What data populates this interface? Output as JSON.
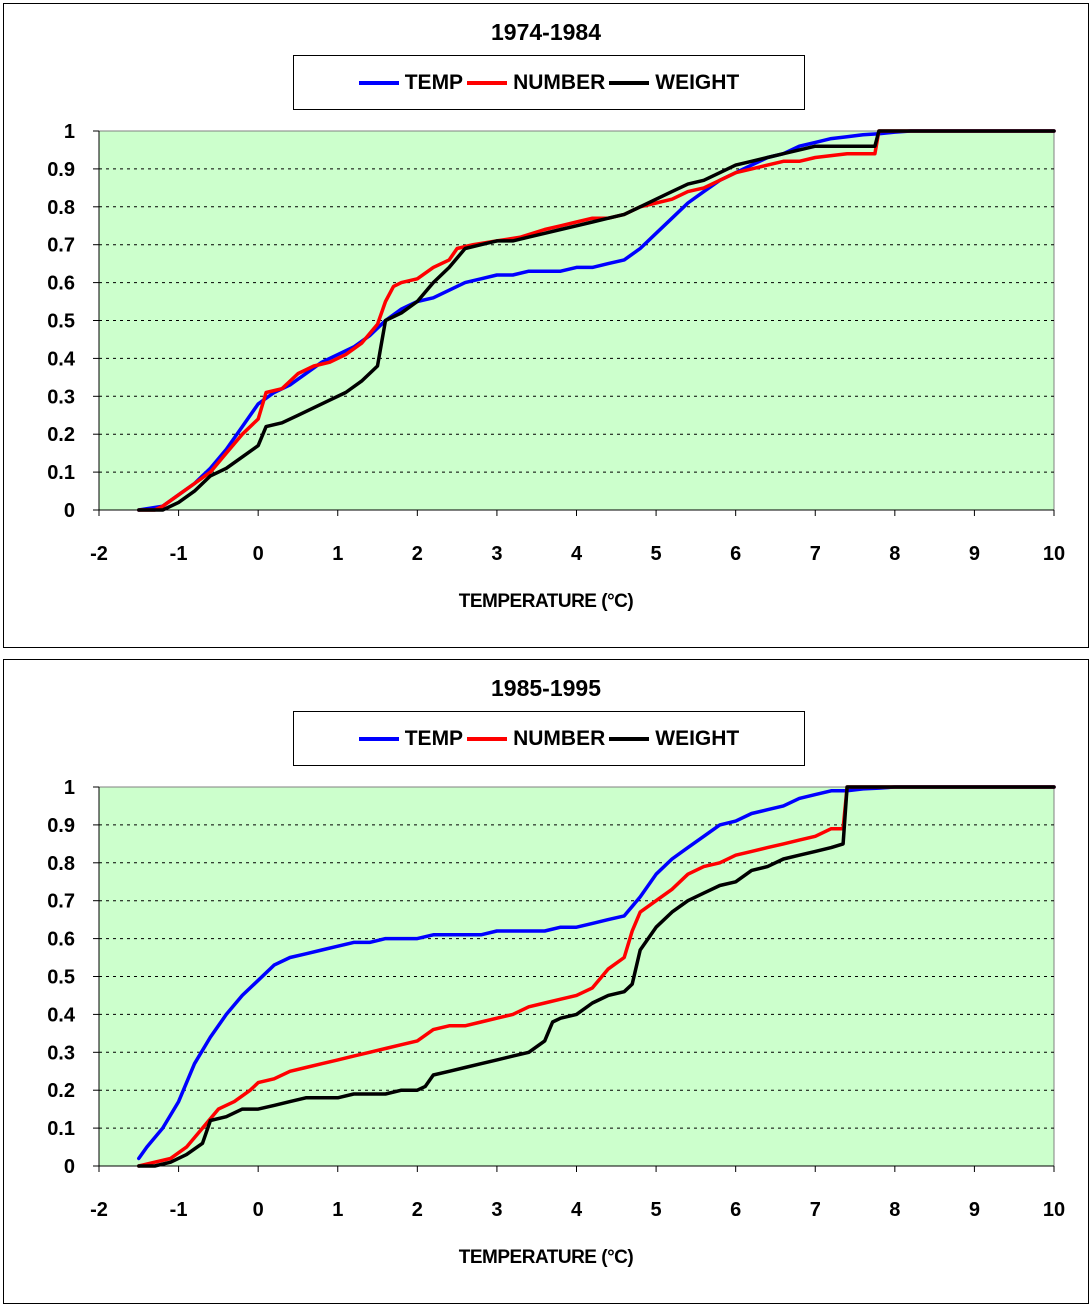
{
  "colors": {
    "plot_bg": "#ccffcc",
    "grid": "#000000",
    "TEMP": "#0000ff",
    "NUMBER": "#ff0000",
    "WEIGHT": "#000000"
  },
  "chart_data": [
    {
      "type": "line",
      "title": "1974-1984",
      "xlabel": "TEMPERATURE (°C)",
      "ylabel": "",
      "xlim": [
        -2,
        10
      ],
      "ylim": [
        0,
        1
      ],
      "xticks": [
        "-2",
        "-1",
        "0",
        "1",
        "2",
        "3",
        "4",
        "5",
        "6",
        "7",
        "8",
        "9",
        "10"
      ],
      "yticks": [
        "0",
        "0.1",
        "0.2",
        "0.3",
        "0.4",
        "0.5",
        "0.6",
        "0.7",
        "0.8",
        "0.9",
        "1"
      ],
      "grid": "horizontal dashed",
      "legend": "top-center",
      "series": [
        {
          "name": "TEMP",
          "x": [
            -1.5,
            -1.2,
            -1.0,
            -0.8,
            -0.6,
            -0.4,
            -0.2,
            0.0,
            0.2,
            0.4,
            0.6,
            0.8,
            1.0,
            1.2,
            1.4,
            1.6,
            1.8,
            2.0,
            2.2,
            2.4,
            2.6,
            2.8,
            3.0,
            3.2,
            3.4,
            3.6,
            3.8,
            4.0,
            4.2,
            4.4,
            4.6,
            4.8,
            5.0,
            5.2,
            5.4,
            5.6,
            5.8,
            6.0,
            6.2,
            6.4,
            6.6,
            6.8,
            7.0,
            7.2,
            7.4,
            7.6,
            7.8,
            8.0,
            8.2,
            10.0
          ],
          "y": [
            0,
            0.01,
            0.04,
            0.07,
            0.11,
            0.16,
            0.22,
            0.28,
            0.31,
            0.33,
            0.36,
            0.39,
            0.41,
            0.43,
            0.46,
            0.5,
            0.53,
            0.55,
            0.56,
            0.58,
            0.6,
            0.61,
            0.62,
            0.62,
            0.63,
            0.63,
            0.63,
            0.64,
            0.64,
            0.65,
            0.66,
            0.69,
            0.73,
            0.77,
            0.81,
            0.84,
            0.87,
            0.89,
            0.91,
            0.93,
            0.94,
            0.96,
            0.97,
            0.98,
            0.985,
            0.99,
            0.993,
            0.997,
            1,
            1
          ]
        },
        {
          "name": "NUMBER",
          "x": [
            -1.5,
            -1.3,
            -1.2,
            -1.0,
            -0.8,
            -0.6,
            -0.4,
            -0.2,
            0.0,
            0.1,
            0.3,
            0.5,
            0.7,
            0.9,
            1.1,
            1.3,
            1.5,
            1.6,
            1.7,
            1.8,
            2.0,
            2.2,
            2.4,
            2.5,
            2.7,
            3.0,
            3.3,
            3.6,
            3.8,
            4.0,
            4.2,
            4.4,
            4.6,
            4.8,
            5.0,
            5.2,
            5.4,
            5.6,
            5.8,
            6.0,
            6.2,
            6.4,
            6.6,
            6.8,
            7.0,
            7.2,
            7.4,
            7.6,
            7.75,
            7.8,
            8.2,
            10.0
          ],
          "y": [
            0,
            0,
            0.01,
            0.04,
            0.07,
            0.1,
            0.15,
            0.2,
            0.24,
            0.31,
            0.32,
            0.36,
            0.38,
            0.39,
            0.41,
            0.44,
            0.49,
            0.55,
            0.59,
            0.6,
            0.61,
            0.64,
            0.66,
            0.69,
            0.7,
            0.71,
            0.72,
            0.74,
            0.75,
            0.76,
            0.77,
            0.77,
            0.78,
            0.8,
            0.81,
            0.82,
            0.84,
            0.85,
            0.87,
            0.89,
            0.9,
            0.91,
            0.92,
            0.92,
            0.93,
            0.935,
            0.94,
            0.94,
            0.94,
            1,
            1,
            1
          ]
        },
        {
          "name": "WEIGHT",
          "x": [
            -1.5,
            -1.2,
            -1.0,
            -0.8,
            -0.6,
            -0.4,
            -0.2,
            0.0,
            0.1,
            0.3,
            0.5,
            0.7,
            0.9,
            1.1,
            1.3,
            1.5,
            1.55,
            1.6,
            1.8,
            2.0,
            2.2,
            2.4,
            2.6,
            2.8,
            3.0,
            3.2,
            3.4,
            3.6,
            3.8,
            4.0,
            4.2,
            4.4,
            4.6,
            4.8,
            5.0,
            5.2,
            5.4,
            5.6,
            5.8,
            6.0,
            6.2,
            6.4,
            6.6,
            6.8,
            7.0,
            7.2,
            7.4,
            7.6,
            7.75,
            7.8,
            8.2,
            10.0
          ],
          "y": [
            0,
            0,
            0.02,
            0.05,
            0.09,
            0.11,
            0.14,
            0.17,
            0.22,
            0.23,
            0.25,
            0.27,
            0.29,
            0.31,
            0.34,
            0.38,
            0.44,
            0.5,
            0.52,
            0.55,
            0.6,
            0.64,
            0.69,
            0.7,
            0.71,
            0.71,
            0.72,
            0.73,
            0.74,
            0.75,
            0.76,
            0.77,
            0.78,
            0.8,
            0.82,
            0.84,
            0.86,
            0.87,
            0.89,
            0.91,
            0.92,
            0.93,
            0.94,
            0.95,
            0.96,
            0.96,
            0.96,
            0.96,
            0.96,
            1,
            1,
            1
          ]
        }
      ]
    },
    {
      "type": "line",
      "title": "1985-1995",
      "xlabel": "TEMPERATURE (°C)",
      "ylabel": "",
      "xlim": [
        -2,
        10
      ],
      "ylim": [
        0,
        1
      ],
      "xticks": [
        "-2",
        "-1",
        "0",
        "1",
        "2",
        "3",
        "4",
        "5",
        "6",
        "7",
        "8",
        "9",
        "10"
      ],
      "yticks": [
        "0",
        "0.1",
        "0.2",
        "0.3",
        "0.4",
        "0.5",
        "0.6",
        "0.7",
        "0.8",
        "0.9",
        "1"
      ],
      "grid": "horizontal dashed",
      "legend": "top-center",
      "series": [
        {
          "name": "TEMP",
          "x": [
            -1.5,
            -1.4,
            -1.2,
            -1.0,
            -0.8,
            -0.6,
            -0.4,
            -0.2,
            0.0,
            0.2,
            0.4,
            0.6,
            0.8,
            1.0,
            1.2,
            1.4,
            1.6,
            1.8,
            2.0,
            2.2,
            2.4,
            2.6,
            2.8,
            3.0,
            3.2,
            3.4,
            3.6,
            3.8,
            4.0,
            4.2,
            4.4,
            4.6,
            4.8,
            5.0,
            5.2,
            5.4,
            5.6,
            5.8,
            6.0,
            6.2,
            6.4,
            6.6,
            6.8,
            7.0,
            7.2,
            7.4,
            7.6,
            7.8,
            8.0,
            10.0
          ],
          "y": [
            0.02,
            0.05,
            0.1,
            0.17,
            0.27,
            0.34,
            0.4,
            0.45,
            0.49,
            0.53,
            0.55,
            0.56,
            0.57,
            0.58,
            0.59,
            0.59,
            0.6,
            0.6,
            0.6,
            0.61,
            0.61,
            0.61,
            0.61,
            0.62,
            0.62,
            0.62,
            0.62,
            0.63,
            0.63,
            0.64,
            0.65,
            0.66,
            0.71,
            0.77,
            0.81,
            0.84,
            0.87,
            0.9,
            0.91,
            0.93,
            0.94,
            0.95,
            0.97,
            0.98,
            0.99,
            0.99,
            0.995,
            0.997,
            1,
            1
          ]
        },
        {
          "name": "NUMBER",
          "x": [
            -1.5,
            -1.3,
            -1.1,
            -0.9,
            -0.7,
            -0.5,
            -0.3,
            -0.1,
            0.0,
            0.2,
            0.4,
            0.6,
            0.8,
            1.0,
            1.2,
            1.4,
            1.6,
            1.8,
            2.0,
            2.2,
            2.4,
            2.6,
            2.8,
            3.0,
            3.2,
            3.4,
            3.6,
            3.8,
            4.0,
            4.2,
            4.4,
            4.6,
            4.7,
            4.8,
            5.0,
            5.2,
            5.4,
            5.6,
            5.8,
            6.0,
            6.2,
            6.4,
            6.6,
            6.8,
            7.0,
            7.2,
            7.35,
            7.4,
            7.6,
            8.0,
            10.0
          ],
          "y": [
            0,
            0.01,
            0.02,
            0.05,
            0.1,
            0.15,
            0.17,
            0.2,
            0.22,
            0.23,
            0.25,
            0.26,
            0.27,
            0.28,
            0.29,
            0.3,
            0.31,
            0.32,
            0.33,
            0.36,
            0.37,
            0.37,
            0.38,
            0.39,
            0.4,
            0.42,
            0.43,
            0.44,
            0.45,
            0.47,
            0.52,
            0.55,
            0.62,
            0.67,
            0.7,
            0.73,
            0.77,
            0.79,
            0.8,
            0.82,
            0.83,
            0.84,
            0.85,
            0.86,
            0.87,
            0.89,
            0.89,
            1,
            1,
            1,
            1
          ]
        },
        {
          "name": "WEIGHT",
          "x": [
            -1.5,
            -1.3,
            -1.1,
            -0.9,
            -0.7,
            -0.6,
            -0.4,
            -0.2,
            0.0,
            0.2,
            0.4,
            0.6,
            0.8,
            1.0,
            1.2,
            1.4,
            1.6,
            1.8,
            2.0,
            2.1,
            2.2,
            2.4,
            2.6,
            2.8,
            3.0,
            3.2,
            3.4,
            3.6,
            3.7,
            3.8,
            4.0,
            4.2,
            4.4,
            4.6,
            4.7,
            4.8,
            5.0,
            5.2,
            5.4,
            5.6,
            5.8,
            6.0,
            6.2,
            6.4,
            6.6,
            6.8,
            7.0,
            7.2,
            7.35,
            7.4,
            7.6,
            8.0,
            10.0
          ],
          "y": [
            0,
            0,
            0.01,
            0.03,
            0.06,
            0.12,
            0.13,
            0.15,
            0.15,
            0.16,
            0.17,
            0.18,
            0.18,
            0.18,
            0.19,
            0.19,
            0.19,
            0.2,
            0.2,
            0.21,
            0.24,
            0.25,
            0.26,
            0.27,
            0.28,
            0.29,
            0.3,
            0.33,
            0.38,
            0.39,
            0.4,
            0.43,
            0.45,
            0.46,
            0.48,
            0.57,
            0.63,
            0.67,
            0.7,
            0.72,
            0.74,
            0.75,
            0.78,
            0.79,
            0.81,
            0.82,
            0.83,
            0.84,
            0.85,
            1,
            1,
            1,
            1
          ]
        }
      ]
    }
  ]
}
